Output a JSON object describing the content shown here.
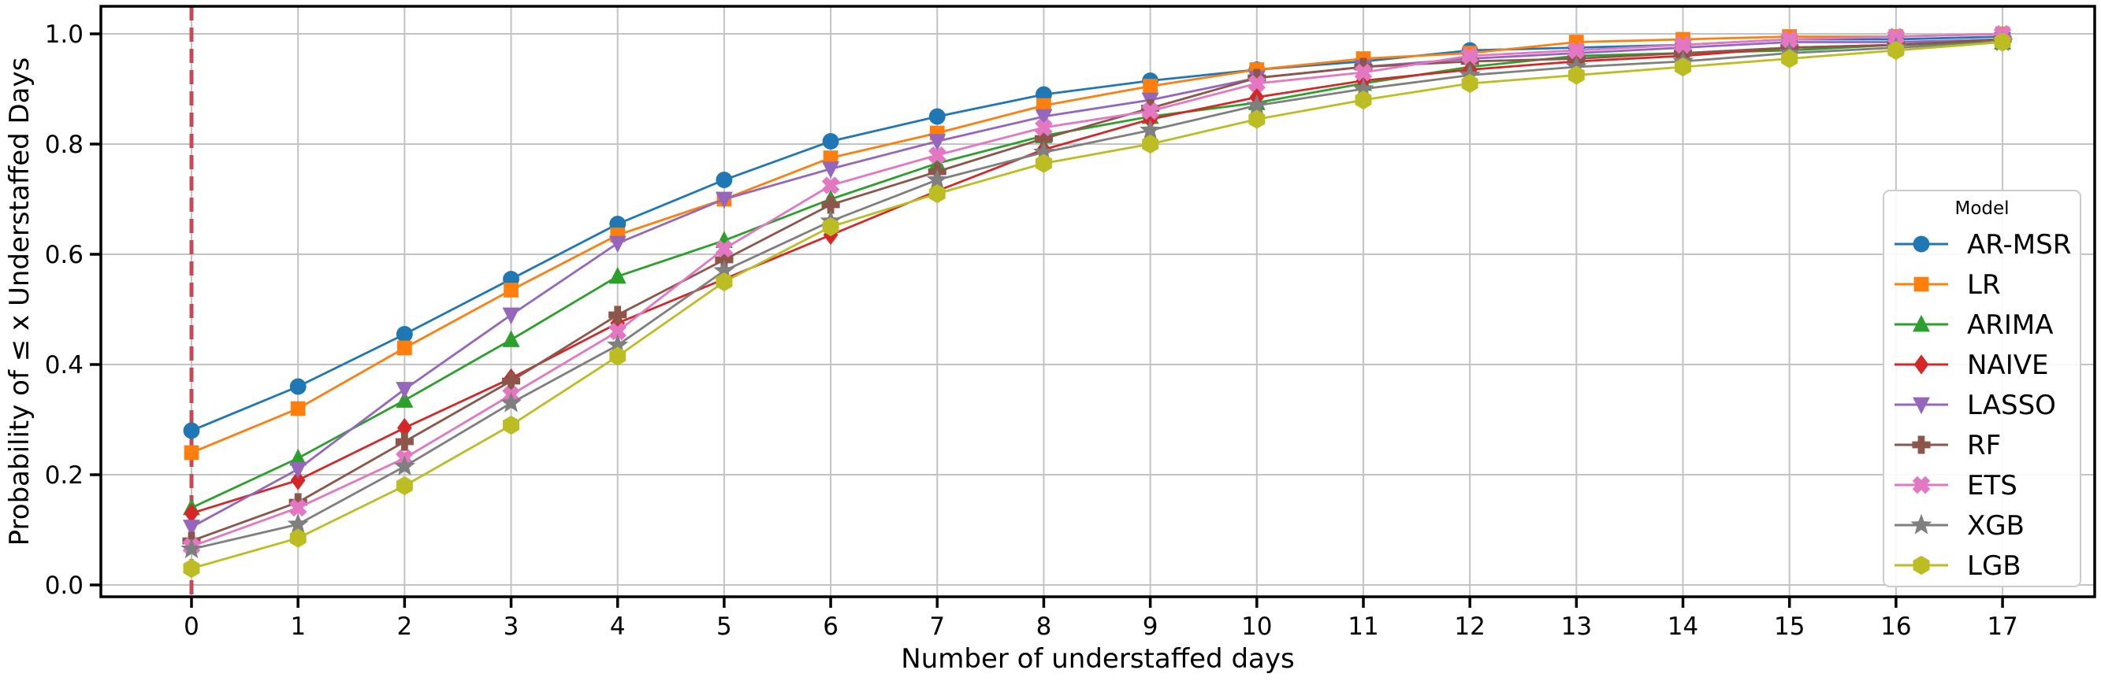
{
  "figure": {
    "xlabel": "Number of understaffed days",
    "ylabel": "Probability of ≤ x Understaffed Days",
    "legend_title": "Model"
  },
  "chart_data": {
    "type": "line",
    "title": "",
    "xlabel": "Number of understaffed days",
    "ylabel": "Probability of ≤ x Understaffed Days",
    "x": [
      0,
      1,
      2,
      3,
      4,
      5,
      6,
      7,
      8,
      9,
      10,
      11,
      12,
      13,
      14,
      15,
      16,
      17
    ],
    "xticks": [
      0,
      1,
      2,
      3,
      4,
      5,
      6,
      7,
      8,
      9,
      10,
      11,
      12,
      13,
      14,
      15,
      16,
      17
    ],
    "yticks": [
      0.0,
      0.2,
      0.4,
      0.6,
      0.8,
      1.0
    ],
    "xlim": [
      -0.85,
      17.87
    ],
    "ylim": [
      -0.02,
      1.05
    ],
    "grid": true,
    "legend_position": "right",
    "legend_title": "Model",
    "reference_line": {
      "orientation": "vertical",
      "x": 0,
      "style": "dashed",
      "color": "#c84855"
    },
    "series": [
      {
        "name": "AR-MSR",
        "color": "#1f77b4",
        "marker": "circle",
        "values": [
          0.28,
          0.36,
          0.455,
          0.555,
          0.655,
          0.735,
          0.805,
          0.85,
          0.89,
          0.915,
          0.935,
          0.95,
          0.97,
          0.975,
          0.98,
          0.99,
          0.99,
          0.995
        ]
      },
      {
        "name": "LR",
        "color": "#ff7f0e",
        "marker": "square",
        "values": [
          0.24,
          0.32,
          0.43,
          0.535,
          0.635,
          0.7,
          0.775,
          0.82,
          0.87,
          0.905,
          0.935,
          0.955,
          0.965,
          0.985,
          0.99,
          0.995,
          0.995,
          1.0
        ]
      },
      {
        "name": "ARIMA",
        "color": "#2ca02c",
        "marker": "triangle-up",
        "values": [
          0.14,
          0.23,
          0.335,
          0.445,
          0.56,
          0.625,
          0.7,
          0.765,
          0.815,
          0.85,
          0.875,
          0.91,
          0.94,
          0.96,
          0.965,
          0.97,
          0.98,
          0.985
        ]
      },
      {
        "name": "NAIVE",
        "color": "#d62728",
        "marker": "diamond",
        "values": [
          0.13,
          0.19,
          0.285,
          0.375,
          0.475,
          0.555,
          0.635,
          0.715,
          0.79,
          0.845,
          0.885,
          0.915,
          0.935,
          0.95,
          0.96,
          0.975,
          0.98,
          0.99
        ]
      },
      {
        "name": "LASSO",
        "color": "#9467bd",
        "marker": "triangle-down",
        "values": [
          0.105,
          0.21,
          0.355,
          0.49,
          0.62,
          0.7,
          0.755,
          0.805,
          0.85,
          0.88,
          0.92,
          0.94,
          0.955,
          0.965,
          0.975,
          0.985,
          0.985,
          0.99
        ]
      },
      {
        "name": "RF",
        "color": "#8c564b",
        "marker": "plus",
        "values": [
          0.08,
          0.15,
          0.26,
          0.37,
          0.49,
          0.59,
          0.69,
          0.75,
          0.81,
          0.865,
          0.92,
          0.94,
          0.95,
          0.955,
          0.965,
          0.975,
          0.98,
          0.99
        ]
      },
      {
        "name": "ETS",
        "color": "#e377c2",
        "marker": "x",
        "values": [
          0.07,
          0.14,
          0.23,
          0.345,
          0.46,
          0.61,
          0.725,
          0.78,
          0.83,
          0.86,
          0.91,
          0.93,
          0.96,
          0.97,
          0.98,
          0.99,
          0.995,
          1.0
        ]
      },
      {
        "name": "XGB",
        "color": "#7f7f7f",
        "marker": "star",
        "values": [
          0.065,
          0.11,
          0.215,
          0.33,
          0.435,
          0.57,
          0.66,
          0.735,
          0.785,
          0.825,
          0.87,
          0.9,
          0.925,
          0.94,
          0.95,
          0.965,
          0.975,
          0.985
        ]
      },
      {
        "name": "LGB",
        "color": "#bcbd22",
        "marker": "hexagon",
        "values": [
          0.03,
          0.085,
          0.18,
          0.29,
          0.415,
          0.55,
          0.65,
          0.71,
          0.765,
          0.8,
          0.845,
          0.88,
          0.91,
          0.925,
          0.94,
          0.955,
          0.97,
          0.985
        ]
      }
    ],
    "colors": {
      "grid": "#c3c3c3",
      "spine": "#000000",
      "reference_line": "#c84855"
    }
  }
}
